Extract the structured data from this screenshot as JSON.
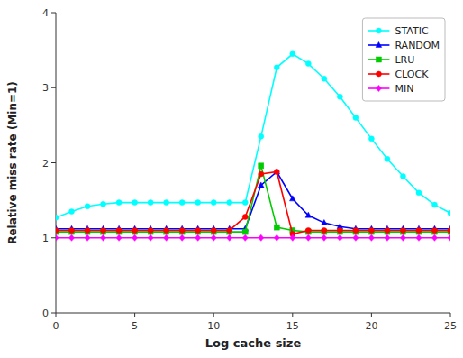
{
  "chart_data": {
    "type": "line",
    "xlabel": "Log cache size",
    "ylabel": "Relative miss rate (Min=1)",
    "x": [
      0,
      1,
      2,
      3,
      4,
      5,
      6,
      7,
      8,
      9,
      10,
      11,
      12,
      13,
      14,
      15,
      16,
      17,
      18,
      19,
      20,
      21,
      22,
      23,
      24,
      25
    ],
    "xlim": [
      0,
      25
    ],
    "ylim": [
      0,
      4
    ],
    "xticks": [
      0,
      5,
      10,
      15,
      20,
      25
    ],
    "yticks": [
      0,
      1,
      2,
      3,
      4
    ],
    "grid": false,
    "legend": "upper right",
    "series": [
      {
        "name": "STATIC",
        "color": "#00FFFF",
        "marker": "circle",
        "values": [
          1.27,
          1.35,
          1.42,
          1.45,
          1.47,
          1.47,
          1.47,
          1.47,
          1.47,
          1.47,
          1.47,
          1.47,
          1.47,
          2.35,
          3.27,
          3.45,
          3.32,
          3.12,
          2.88,
          2.6,
          2.32,
          2.05,
          1.82,
          1.6,
          1.44,
          1.33
        ]
      },
      {
        "name": "RANDOM",
        "color": "#0000FF",
        "marker": "triangle",
        "values": [
          1.12,
          1.12,
          1.12,
          1.12,
          1.12,
          1.12,
          1.12,
          1.12,
          1.12,
          1.12,
          1.12,
          1.12,
          1.12,
          1.7,
          1.88,
          1.52,
          1.3,
          1.2,
          1.15,
          1.12,
          1.12,
          1.12,
          1.12,
          1.12,
          1.12,
          1.12
        ]
      },
      {
        "name": "LRU",
        "color": "#00CC00",
        "marker": "square",
        "values": [
          1.08,
          1.08,
          1.08,
          1.08,
          1.08,
          1.08,
          1.08,
          1.08,
          1.08,
          1.08,
          1.08,
          1.08,
          1.08,
          1.96,
          1.14,
          1.1,
          1.08,
          1.08,
          1.08,
          1.08,
          1.08,
          1.08,
          1.08,
          1.08,
          1.08,
          1.08
        ]
      },
      {
        "name": "CLOCK",
        "color": "#FF0000",
        "marker": "circle",
        "values": [
          1.1,
          1.1,
          1.1,
          1.1,
          1.1,
          1.1,
          1.1,
          1.1,
          1.1,
          1.1,
          1.1,
          1.1,
          1.28,
          1.85,
          1.88,
          1.05,
          1.1,
          1.1,
          1.1,
          1.1,
          1.1,
          1.1,
          1.1,
          1.1,
          1.1,
          1.1
        ]
      },
      {
        "name": "MIN",
        "color": "#FF00FF",
        "marker": "diamond",
        "values": [
          1.0,
          1.0,
          1.0,
          1.0,
          1.0,
          1.0,
          1.0,
          1.0,
          1.0,
          1.0,
          1.0,
          1.0,
          1.0,
          1.0,
          1.0,
          1.0,
          1.0,
          1.0,
          1.0,
          1.0,
          1.0,
          1.0,
          1.0,
          1.0,
          1.0,
          1.0
        ]
      }
    ]
  }
}
